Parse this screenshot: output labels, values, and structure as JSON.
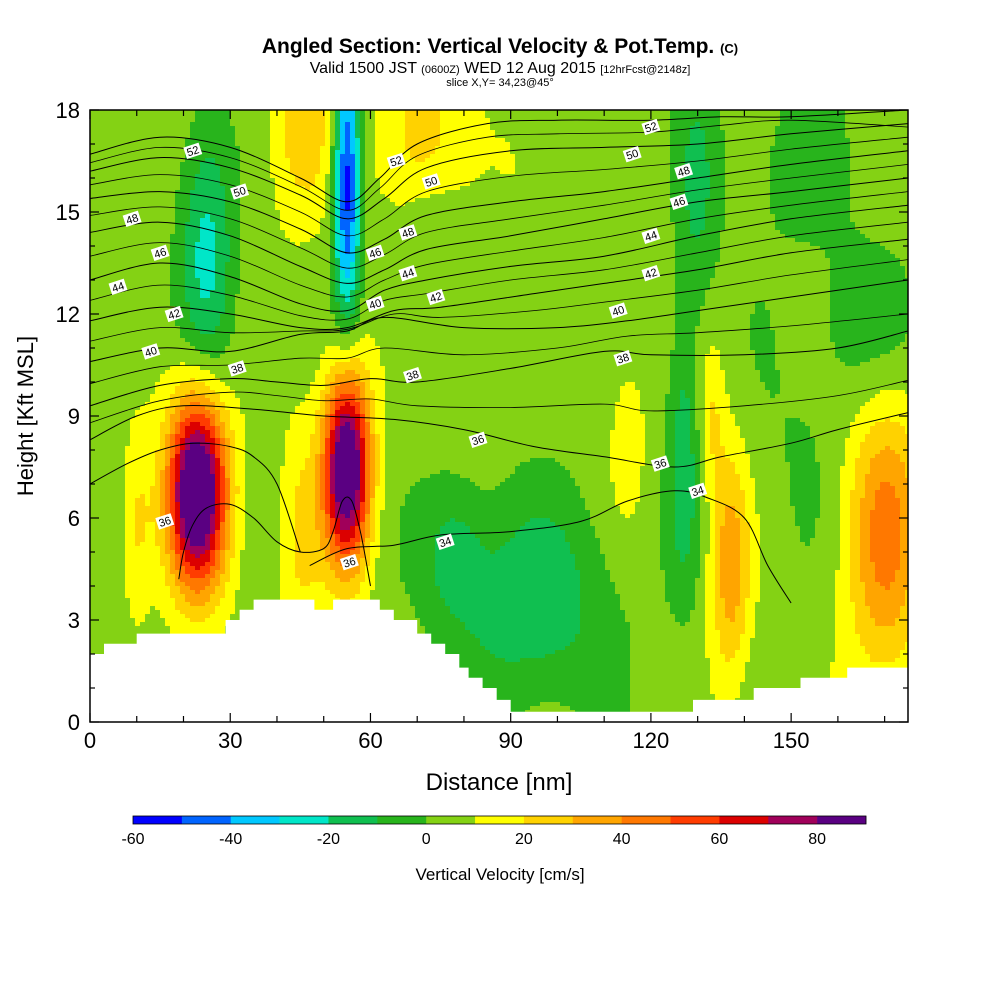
{
  "title": {
    "main": "Angled Section: Vertical Velocity & Pot.Temp.",
    "tag": "(C)"
  },
  "subtitle": {
    "a": "Valid 1500 JST",
    "b": "(0600Z)",
    "c": "WED 12 Aug 2015",
    "d": "[12hrFcst@2148z]"
  },
  "slice_text": "slice X,Y= 34,23@45°",
  "colors": {
    "levels": [
      "#0000ff",
      "#0064ff",
      "#00c8ff",
      "#00e6c8",
      "#10bf50",
      "#28b41c",
      "#84d214",
      "#ffff00",
      "#ffd200",
      "#ffa500",
      "#ff7800",
      "#ff3c00",
      "#dc0000",
      "#a0005a",
      "#5a0082"
    ]
  },
  "chart_data": {
    "type": "heatmap",
    "xlabel": "Distance [nm]",
    "ylabel": "Height [Kft MSL]",
    "xlim": [
      0,
      175
    ],
    "ylim": [
      0,
      18
    ],
    "xticks": [
      0,
      30,
      60,
      90,
      120,
      150
    ],
    "yticks": [
      0,
      3,
      6,
      9,
      12,
      15,
      18
    ],
    "colorbar": {
      "label": "Vertical Velocity [cm/s]",
      "levels": [
        -60,
        -50,
        -40,
        -30,
        -20,
        -10,
        0,
        10,
        20,
        30,
        40,
        50,
        60,
        70,
        80,
        90
      ],
      "ticks": [
        -60,
        -40,
        -20,
        0,
        20,
        40,
        60,
        80
      ]
    },
    "background_velocity": 5,
    "velocity_features": [
      {
        "x": 23,
        "y": 6.8,
        "sx": 4.5,
        "sy": 2.0,
        "v": 100
      },
      {
        "x": 55,
        "y": 7.5,
        "sx": 3.5,
        "sy": 2.0,
        "v": 95
      },
      {
        "x": 10,
        "y": 5.8,
        "sx": 2.5,
        "sy": 1.8,
        "v": 18
      },
      {
        "x": 45,
        "y": 5.5,
        "sx": 3.5,
        "sy": 2.2,
        "v": 18
      },
      {
        "x": 137,
        "y": 4.6,
        "sx": 3.0,
        "sy": 2.4,
        "v": 32
      },
      {
        "x": 133,
        "y": 9.0,
        "sx": 2.0,
        "sy": 1.5,
        "v": 15
      },
      {
        "x": 170,
        "y": 5.5,
        "sx": 6.0,
        "sy": 3.0,
        "v": 38
      },
      {
        "x": 45,
        "y": 17.5,
        "sx": 5.0,
        "sy": 2.0,
        "v": 22
      },
      {
        "x": 70,
        "y": 17.2,
        "sx": 6.0,
        "sy": 2.2,
        "v": 22
      },
      {
        "x": 92,
        "y": 16.5,
        "sx": 4.0,
        "sy": 1.5,
        "v": 6
      },
      {
        "x": 115,
        "y": 8.5,
        "sx": 3.0,
        "sy": 2.0,
        "v": 10
      },
      {
        "x": 55,
        "y": 16.0,
        "sx": 2.0,
        "sy": 2.8,
        "v": -62
      },
      {
        "x": 25,
        "y": 14.0,
        "sx": 4.0,
        "sy": 2.8,
        "v": -28
      },
      {
        "x": 72,
        "y": 14.5,
        "sx": 5.0,
        "sy": 1.2,
        "v": -12
      },
      {
        "x": 95,
        "y": 3.5,
        "sx": 12.0,
        "sy": 2.2,
        "v": -22
      },
      {
        "x": 78,
        "y": 5.0,
        "sx": 5.0,
        "sy": 1.5,
        "v": -16
      },
      {
        "x": 127,
        "y": 8.0,
        "sx": 2.5,
        "sy": 3.0,
        "v": -20
      },
      {
        "x": 150,
        "y": 7.5,
        "sx": 8.0,
        "sy": 2.5,
        "v": -5
      },
      {
        "x": 165,
        "y": 11.5,
        "sx": 8.0,
        "sy": 2.0,
        "v": -12
      },
      {
        "x": 130,
        "y": 15.5,
        "sx": 3.0,
        "sy": 2.5,
        "v": -15
      },
      {
        "x": 148,
        "y": 16.5,
        "sx": 10.0,
        "sy": 2.0,
        "v": -8
      }
    ],
    "terrain": [
      [
        0,
        2.0
      ],
      [
        3,
        2.0
      ],
      [
        3,
        2.3
      ],
      [
        10,
        2.3
      ],
      [
        10,
        2.6
      ],
      [
        29,
        2.6
      ],
      [
        29,
        3.0
      ],
      [
        32,
        3.0
      ],
      [
        32,
        3.3
      ],
      [
        35,
        3.3
      ],
      [
        35,
        3.6
      ],
      [
        48,
        3.6
      ],
      [
        48,
        3.3
      ],
      [
        52,
        3.3
      ],
      [
        52,
        3.6
      ],
      [
        62,
        3.6
      ],
      [
        62,
        3.3
      ],
      [
        65,
        3.3
      ],
      [
        65,
        3.0
      ],
      [
        70,
        3.0
      ],
      [
        70,
        2.6
      ],
      [
        73,
        2.6
      ],
      [
        73,
        2.3
      ],
      [
        76,
        2.3
      ],
      [
        76,
        2.0
      ],
      [
        79,
        2.0
      ],
      [
        79,
        1.6
      ],
      [
        81,
        1.6
      ],
      [
        81,
        1.3
      ],
      [
        84,
        1.3
      ],
      [
        84,
        1.0
      ],
      [
        87,
        1.0
      ],
      [
        87,
        0.65
      ],
      [
        90,
        0.65
      ],
      [
        90,
        0.3
      ],
      [
        129,
        0.3
      ],
      [
        129,
        0.65
      ],
      [
        142,
        0.65
      ],
      [
        142,
        1.0
      ],
      [
        152,
        1.0
      ],
      [
        152,
        1.3
      ],
      [
        162,
        1.3
      ],
      [
        162,
        1.6
      ],
      [
        175,
        1.6
      ]
    ],
    "theta_contours": [
      {
        "theta": 52,
        "points": [
          [
            0,
            16.7
          ],
          [
            15,
            17.2
          ],
          [
            30,
            16.9
          ],
          [
            45,
            16.0
          ],
          [
            55,
            15.3
          ],
          [
            62,
            16.0
          ],
          [
            70,
            17.0
          ],
          [
            85,
            17.6
          ],
          [
            100,
            17.7
          ],
          [
            120,
            17.7
          ],
          [
            135,
            17.8
          ],
          [
            150,
            17.8
          ],
          [
            175,
            18.0
          ]
        ]
      },
      {
        "theta": 50,
        "points": [
          [
            0,
            16.2
          ],
          [
            15,
            16.6
          ],
          [
            30,
            16.3
          ],
          [
            45,
            15.5
          ],
          [
            55,
            14.8
          ],
          [
            63,
            15.4
          ],
          [
            72,
            16.3
          ],
          [
            90,
            16.8
          ],
          [
            110,
            16.9
          ],
          [
            130,
            17.0
          ],
          [
            150,
            17.3
          ],
          [
            175,
            17.6
          ]
        ]
      },
      {
        "theta": 48,
        "points": [
          [
            0,
            15.4
          ],
          [
            15,
            15.6
          ],
          [
            30,
            15.3
          ],
          [
            45,
            14.5
          ],
          [
            55,
            13.8
          ],
          [
            63,
            14.2
          ],
          [
            72,
            14.9
          ],
          [
            90,
            15.3
          ],
          [
            110,
            15.6
          ],
          [
            130,
            16.0
          ],
          [
            150,
            16.4
          ],
          [
            175,
            16.8
          ]
        ]
      },
      {
        "theta": 46,
        "points": [
          [
            0,
            14.4
          ],
          [
            15,
            14.7
          ],
          [
            30,
            14.3
          ],
          [
            45,
            13.4
          ],
          [
            55,
            12.9
          ],
          [
            63,
            13.3
          ],
          [
            72,
            13.9
          ],
          [
            90,
            14.3
          ],
          [
            110,
            14.8
          ],
          [
            130,
            15.3
          ],
          [
            150,
            15.6
          ],
          [
            175,
            16.0
          ]
        ]
      },
      {
        "theta": 44,
        "points": [
          [
            0,
            13.0
          ],
          [
            15,
            13.5
          ],
          [
            30,
            13.1
          ],
          [
            45,
            12.3
          ],
          [
            55,
            12.1
          ],
          [
            63,
            12.7
          ],
          [
            72,
            13.0
          ],
          [
            90,
            13.4
          ],
          [
            110,
            13.7
          ],
          [
            130,
            14.3
          ],
          [
            150,
            14.8
          ],
          [
            175,
            15.2
          ]
        ]
      },
      {
        "theta": 42,
        "points": [
          [
            0,
            11.8
          ],
          [
            15,
            12.2
          ],
          [
            30,
            12.0
          ],
          [
            45,
            11.6
          ],
          [
            55,
            11.6
          ],
          [
            65,
            12.1
          ],
          [
            75,
            12.2
          ],
          [
            95,
            12.6
          ],
          [
            110,
            12.9
          ],
          [
            130,
            13.3
          ],
          [
            150,
            13.8
          ],
          [
            175,
            14.2
          ]
        ]
      },
      {
        "theta": 40,
        "points": [
          [
            0,
            10.6
          ],
          [
            15,
            11.0
          ],
          [
            30,
            10.9
          ],
          [
            45,
            11.4
          ],
          [
            55,
            11.5
          ],
          [
            63,
            11.9
          ],
          [
            80,
            11.6
          ],
          [
            100,
            11.6
          ],
          [
            115,
            11.8
          ],
          [
            130,
            12.1
          ],
          [
            150,
            12.5
          ],
          [
            175,
            13.0
          ]
        ]
      },
      {
        "theta": 38,
        "points": [
          [
            0,
            9.3
          ],
          [
            15,
            9.9
          ],
          [
            30,
            10.1
          ],
          [
            40,
            10.0
          ],
          [
            50,
            9.9
          ],
          [
            60,
            10.1
          ],
          [
            70,
            10.0
          ],
          [
            90,
            10.4
          ],
          [
            110,
            10.9
          ],
          [
            120,
            10.8
          ],
          [
            140,
            10.8
          ],
          [
            160,
            11.0
          ],
          [
            175,
            11.5
          ]
        ]
      },
      {
        "theta": 36,
        "points": [
          [
            0,
            8.3
          ],
          [
            10,
            9.0
          ],
          [
            20,
            9.3
          ],
          [
            35,
            9.2
          ],
          [
            50,
            9.0
          ],
          [
            65,
            8.9
          ],
          [
            80,
            8.6
          ],
          [
            95,
            8.1
          ],
          [
            110,
            7.8
          ],
          [
            125,
            7.5
          ],
          [
            135,
            7.8
          ],
          [
            150,
            8.2
          ],
          [
            160,
            8.6
          ],
          [
            175,
            9.1
          ]
        ]
      },
      {
        "theta": 34,
        "points": [
          [
            47,
            4.6
          ],
          [
            55,
            5.1
          ],
          [
            65,
            5.2
          ],
          [
            75,
            5.5
          ],
          [
            90,
            5.6
          ],
          [
            105,
            5.9
          ],
          [
            115,
            6.5
          ],
          [
            125,
            6.8
          ],
          [
            132,
            6.6
          ],
          [
            140,
            6.0
          ],
          [
            145,
            4.6
          ],
          [
            150,
            3.5
          ]
        ]
      },
      {
        "theta": 36,
        "points": [
          [
            0,
            7.0
          ],
          [
            8,
            7.6
          ],
          [
            15,
            8.0
          ],
          [
            22,
            8.2
          ],
          [
            30,
            8.1
          ],
          [
            35,
            7.8
          ],
          [
            40,
            7.0
          ],
          [
            45,
            5.0
          ]
        ]
      },
      {
        "theta": 36,
        "points": [
          [
            19,
            4.2
          ],
          [
            20,
            5.0
          ],
          [
            22,
            5.8
          ],
          [
            25,
            6.3
          ],
          [
            30,
            6.4
          ],
          [
            35,
            6.0
          ],
          [
            40,
            5.3
          ],
          [
            45,
            5.0
          ],
          [
            50,
            5.1
          ],
          [
            52,
            5.6
          ],
          [
            54,
            6.5
          ],
          [
            56,
            6.5
          ],
          [
            58,
            5.5
          ],
          [
            60,
            4.0
          ]
        ]
      }
    ],
    "contour_labels": [
      {
        "text": "52",
        "x": 22,
        "y": 16.8
      },
      {
        "text": "50",
        "x": 32,
        "y": 15.6
      },
      {
        "text": "48",
        "x": 9,
        "y": 14.8
      },
      {
        "text": "46",
        "x": 15,
        "y": 13.8
      },
      {
        "text": "44",
        "x": 6,
        "y": 12.8
      },
      {
        "text": "42",
        "x": 18,
        "y": 12.0
      },
      {
        "text": "40",
        "x": 13,
        "y": 10.9
      },
      {
        "text": "38",
        "x": 31.5,
        "y": 10.4
      },
      {
        "text": "52",
        "x": 65.5,
        "y": 16.5
      },
      {
        "text": "50",
        "x": 73,
        "y": 15.9
      },
      {
        "text": "48",
        "x": 68,
        "y": 14.4
      },
      {
        "text": "46",
        "x": 61,
        "y": 13.8
      },
      {
        "text": "44",
        "x": 68,
        "y": 13.2
      },
      {
        "text": "40",
        "x": 61,
        "y": 12.3
      },
      {
        "text": "42",
        "x": 74,
        "y": 12.5
      },
      {
        "text": "38",
        "x": 69,
        "y": 10.2
      },
      {
        "text": "36",
        "x": 83,
        "y": 8.3
      },
      {
        "text": "34",
        "x": 76,
        "y": 5.3
      },
      {
        "text": "36",
        "x": 55.5,
        "y": 4.7
      },
      {
        "text": "36",
        "x": 16,
        "y": 5.9
      },
      {
        "text": "52",
        "x": 120,
        "y": 17.5
      },
      {
        "text": "50",
        "x": 116,
        "y": 16.7
      },
      {
        "text": "48",
        "x": 127,
        "y": 16.2
      },
      {
        "text": "46",
        "x": 126,
        "y": 15.3
      },
      {
        "text": "44",
        "x": 120,
        "y": 14.3
      },
      {
        "text": "42",
        "x": 120,
        "y": 13.2
      },
      {
        "text": "40",
        "x": 113,
        "y": 12.1
      },
      {
        "text": "38",
        "x": 114,
        "y": 10.7
      },
      {
        "text": "36",
        "x": 122,
        "y": 7.6
      },
      {
        "text": "34",
        "x": 130,
        "y": 6.8
      }
    ]
  }
}
